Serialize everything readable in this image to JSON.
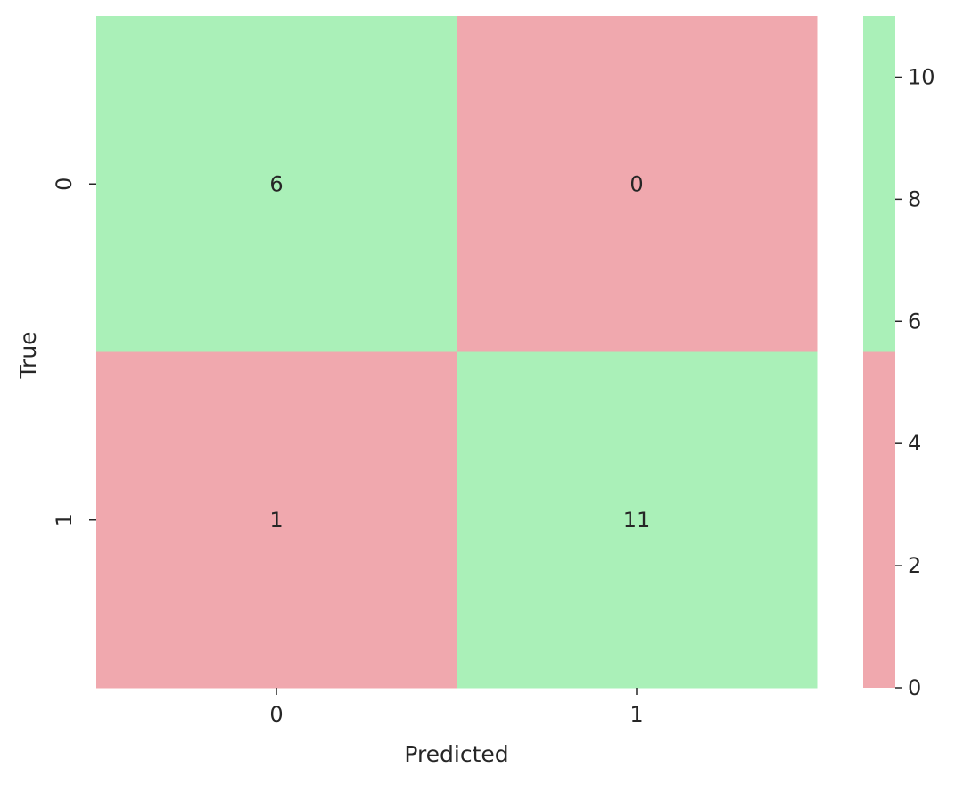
{
  "chart_data": {
    "type": "heatmap",
    "title": "",
    "xlabel": "Predicted",
    "ylabel": "True",
    "x_categories": [
      "0",
      "1"
    ],
    "y_categories": [
      "0",
      "1"
    ],
    "values": [
      [
        6,
        0
      ],
      [
        1,
        11
      ]
    ],
    "colorbar": {
      "range": [
        0,
        11
      ],
      "ticks": [
        0,
        2,
        4,
        6,
        8,
        10
      ],
      "threshold": 5.5,
      "low_color": "#f0a8ae",
      "high_color": "#aaf0b8"
    },
    "grid": false,
    "legend": "none"
  }
}
